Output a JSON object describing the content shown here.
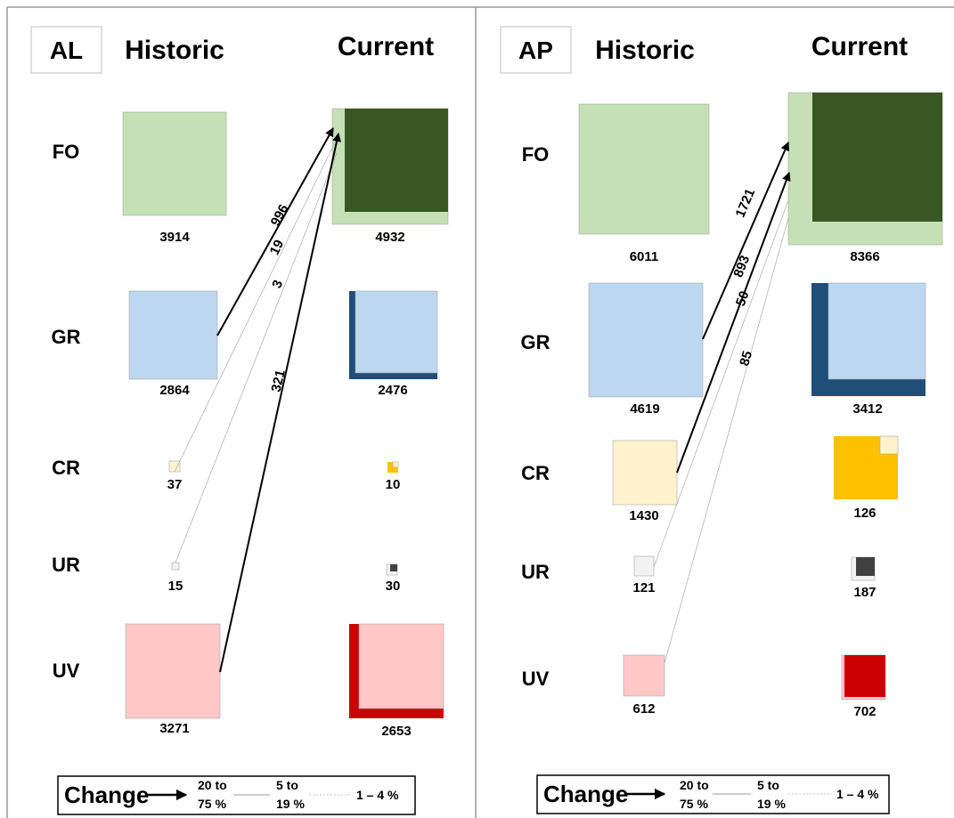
{
  "panels": [
    {
      "code": "AL",
      "historic_label": "Historic",
      "current_label": "Current",
      "rows": [
        {
          "cat": "FO",
          "historic": "3914",
          "current": "4932"
        },
        {
          "cat": "GR",
          "historic": "2864",
          "current": "2476"
        },
        {
          "cat": "CR",
          "historic": "37",
          "current": "10"
        },
        {
          "cat": "UR",
          "historic": "15",
          "current": "30"
        },
        {
          "cat": "UV",
          "historic": "3271",
          "current": "2653"
        }
      ],
      "flows": [
        {
          "from": "GR",
          "to": "FO",
          "value": "996",
          "class": "20 to 75 %"
        },
        {
          "from": "CR",
          "to": "FO",
          "value": "19",
          "class": "1 – 4 %"
        },
        {
          "from": "UR",
          "to": "FO",
          "value": "3",
          "class": "1 – 4 %"
        },
        {
          "from": "UV",
          "to": "FO",
          "value": "321",
          "class": "20 to 75 %"
        }
      ],
      "legend": {
        "title": "Change",
        "c1a": "20 to",
        "c1b": "75 %",
        "c2a": "5 to",
        "c2b": "19 %",
        "c3": "1 – 4 %"
      }
    },
    {
      "code": "AP",
      "historic_label": "Historic",
      "current_label": "Current",
      "rows": [
        {
          "cat": "FO",
          "historic": "6011",
          "current": "8366"
        },
        {
          "cat": "GR",
          "historic": "4619",
          "current": "3412"
        },
        {
          "cat": "CR",
          "historic": "1430",
          "current": "126"
        },
        {
          "cat": "UR",
          "historic": "121",
          "current": "187"
        },
        {
          "cat": "UV",
          "historic": "612",
          "current": "702"
        }
      ],
      "flows": [
        {
          "from": "GR",
          "to": "FO",
          "value": "1721",
          "class": "20 to 75 %"
        },
        {
          "from": "CR",
          "to": "FO",
          "value": "893",
          "class": "20 to 75 %"
        },
        {
          "from": "UR",
          "to": "FO",
          "value": "50",
          "class": "1 – 4 %"
        },
        {
          "from": "UV",
          "to": "FO",
          "value": "85",
          "class": "1 – 4 %"
        }
      ],
      "legend": {
        "title": "Change",
        "c1a": "20 to",
        "c1b": "75 %",
        "c2a": "5 to",
        "c2b": "19 %",
        "c3": "1 – 4 %"
      }
    }
  ],
  "colors": {
    "FO_light": "#c5e0b4",
    "FO_dark": "#385723",
    "GR_light": "#bdd7ee",
    "GR_dark": "#1f4e79",
    "CR_light": "#fff2cc",
    "CR_dark": "#ffc000",
    "UR_light": "#f2f2f2",
    "UR_dark": "#404040",
    "UV_light": "#ffc7c7",
    "UV_dark": "#cc0000"
  }
}
